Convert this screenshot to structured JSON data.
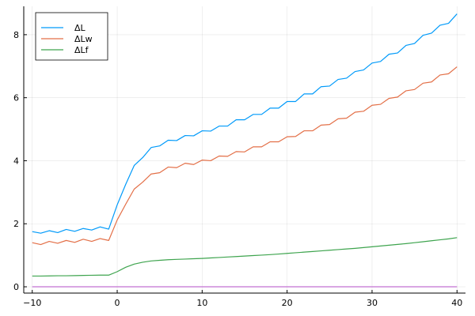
{
  "chart_data": {
    "type": "line",
    "title": "",
    "xlabel": "",
    "ylabel": "",
    "xlim": [
      -11,
      41
    ],
    "ylim": [
      -0.2,
      8.9
    ],
    "xticks": [
      -10,
      0,
      10,
      20,
      30,
      40
    ],
    "yticks": [
      0,
      2,
      4,
      6,
      8
    ],
    "grid": true,
    "legend_position": "top-left",
    "x": [
      -10,
      -9,
      -8,
      -7,
      -6,
      -5,
      -4,
      -3,
      -2,
      -1,
      0,
      1,
      2,
      3,
      4,
      5,
      6,
      7,
      8,
      9,
      10,
      11,
      12,
      13,
      14,
      15,
      16,
      17,
      18,
      19,
      20,
      21,
      22,
      23,
      24,
      25,
      26,
      27,
      28,
      29,
      30,
      31,
      32,
      33,
      34,
      35,
      36,
      37,
      38,
      39,
      40
    ],
    "series": [
      {
        "name": "ΔL",
        "color": "#009AFA",
        "values": [
          1.75,
          1.7,
          1.78,
          1.72,
          1.82,
          1.76,
          1.85,
          1.8,
          1.9,
          1.83,
          2.6,
          3.25,
          3.85,
          4.1,
          4.42,
          4.47,
          4.65,
          4.64,
          4.8,
          4.79,
          4.95,
          4.94,
          5.1,
          5.1,
          5.3,
          5.3,
          5.47,
          5.47,
          5.67,
          5.67,
          5.88,
          5.88,
          6.12,
          6.12,
          6.35,
          6.37,
          6.58,
          6.62,
          6.83,
          6.88,
          7.1,
          7.15,
          7.38,
          7.42,
          7.66,
          7.72,
          7.98,
          8.05,
          8.3,
          8.36,
          8.66
        ]
      },
      {
        "name": "ΔLw",
        "color": "#E36F47",
        "values": [
          1.4,
          1.34,
          1.44,
          1.38,
          1.47,
          1.41,
          1.51,
          1.44,
          1.53,
          1.47,
          2.12,
          2.62,
          3.1,
          3.32,
          3.58,
          3.62,
          3.8,
          3.78,
          3.92,
          3.88,
          4.02,
          4.0,
          4.15,
          4.14,
          4.29,
          4.28,
          4.44,
          4.44,
          4.6,
          4.6,
          4.76,
          4.77,
          4.95,
          4.95,
          5.13,
          5.15,
          5.33,
          5.35,
          5.54,
          5.57,
          5.76,
          5.79,
          5.98,
          6.02,
          6.22,
          6.26,
          6.46,
          6.5,
          6.72,
          6.76,
          6.98
        ]
      },
      {
        "name": "ΔLf",
        "color": "#3EA44E",
        "values": [
          0.34,
          0.34,
          0.345,
          0.35,
          0.35,
          0.355,
          0.36,
          0.365,
          0.37,
          0.37,
          0.48,
          0.62,
          0.72,
          0.78,
          0.82,
          0.84,
          0.86,
          0.87,
          0.88,
          0.89,
          0.9,
          0.915,
          0.93,
          0.945,
          0.96,
          0.975,
          0.99,
          1.005,
          1.02,
          1.04,
          1.06,
          1.08,
          1.1,
          1.12,
          1.14,
          1.16,
          1.18,
          1.2,
          1.22,
          1.245,
          1.27,
          1.295,
          1.32,
          1.345,
          1.37,
          1.4,
          1.43,
          1.46,
          1.49,
          1.52,
          1.56
        ]
      },
      {
        "name": "",
        "color": "#C271D2",
        "values": [
          0,
          0,
          0,
          0,
          0,
          0,
          0,
          0,
          0,
          0,
          0,
          0,
          0,
          0,
          0,
          0,
          0,
          0,
          0,
          0,
          0,
          0,
          0,
          0,
          0,
          0,
          0,
          0,
          0,
          0,
          0,
          0,
          0,
          0,
          0,
          0,
          0,
          0,
          0,
          0,
          0,
          0,
          0,
          0,
          0,
          0,
          0,
          0,
          0,
          0,
          0
        ]
      }
    ]
  }
}
